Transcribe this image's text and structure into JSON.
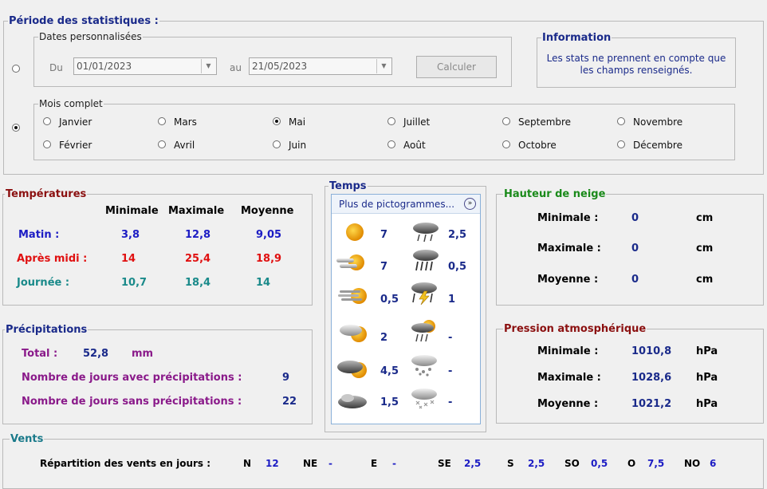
{
  "periode": {
    "title": "Période des statistiques :",
    "custom_dates": {
      "legend": "Dates personnalisées",
      "du_label": "Du",
      "du_value": "01/01/2023",
      "au_label": "au",
      "au_value": "21/05/2023",
      "calc_label": "Calculer"
    },
    "information": {
      "title": "Information",
      "text_line1": "Les stats ne prennent en compte que",
      "text_line2": "les champs renseignés."
    },
    "mois": {
      "legend": "Mois complet",
      "months": [
        "Janvier",
        "Février",
        "Mars",
        "Avril",
        "Mai",
        "Juin",
        "Juillet",
        "Août",
        "Septembre",
        "Octobre",
        "Novembre",
        "Décembre"
      ],
      "selected": "Mai"
    }
  },
  "temperatures": {
    "title": "Températures",
    "col_min": "Minimale",
    "col_max": "Maximale",
    "col_moy": "Moyenne",
    "rows": [
      {
        "label": "Matin :",
        "min": "3,8",
        "max": "12,8",
        "moy": "9,05"
      },
      {
        "label": "Après midi :",
        "min": "14",
        "max": "25,4",
        "moy": "18,9"
      },
      {
        "label": "Journée :",
        "min": "10,7",
        "max": "18,4",
        "moy": "14"
      }
    ],
    "colors": {
      "matin": "#1c1cc4",
      "apres_midi": "#e01010",
      "journee": "#1a8a8a"
    }
  },
  "temps": {
    "title": "Temps",
    "dropdown_label": "Plus de pictogrammes...",
    "items": [
      {
        "left_icon": "sun-icon",
        "left_value": "7",
        "right_icon": "cloud-light-rain-icon",
        "right_value": "2,5"
      },
      {
        "left_icon": "sun-mist-icon",
        "left_value": "7",
        "right_icon": "cloud-heavy-rain-icon",
        "right_value": "0,5"
      },
      {
        "left_icon": "sun-fog-icon",
        "left_value": "0,5",
        "right_icon": "thunderstorm-icon",
        "right_value": "1"
      },
      {
        "left_icon": "partly-cloudy-icon",
        "left_value": "2",
        "right_icon": "sun-rain-icon",
        "right_value": "-"
      },
      {
        "left_icon": "mostly-cloudy-icon",
        "left_value": "4,5",
        "right_icon": "cloud-snow-rain-icon",
        "right_value": "-"
      },
      {
        "left_icon": "overcast-icon",
        "left_value": "1,5",
        "right_icon": "snow-icon",
        "right_value": "-"
      }
    ]
  },
  "neige": {
    "title": "Hauteur de neige",
    "rows": [
      {
        "label": "Minimale :",
        "value": "0",
        "unit": "cm"
      },
      {
        "label": "Maximale :",
        "value": "0",
        "unit": "cm"
      },
      {
        "label": "Moyenne :",
        "value": "0",
        "unit": "cm"
      }
    ]
  },
  "precipitations": {
    "title": "Précipitations",
    "total_label": "Total :",
    "total_value": "52,8",
    "total_unit": "mm",
    "avec_label": "Nombre de jours avec précipitations :",
    "avec_value": "9",
    "sans_label": "Nombre de jours sans précipitations :",
    "sans_value": "22"
  },
  "pression": {
    "title": "Pression atmosphérique",
    "rows": [
      {
        "label": "Minimale :",
        "value": "1010,8",
        "unit": "hPa"
      },
      {
        "label": "Maximale :",
        "value": "1028,6",
        "unit": "hPa"
      },
      {
        "label": "Moyenne :",
        "value": "1021,2",
        "unit": "hPa"
      }
    ]
  },
  "vents": {
    "title": "Vents",
    "repartition_label": "Répartition des vents en jours :",
    "directions": [
      {
        "dir": "N",
        "value": "12"
      },
      {
        "dir": "NE",
        "value": "-"
      },
      {
        "dir": "E",
        "value": "-"
      },
      {
        "dir": "SE",
        "value": "2,5"
      },
      {
        "dir": "S",
        "value": "2,5"
      },
      {
        "dir": "SO",
        "value": "0,5"
      },
      {
        "dir": "O",
        "value": "7,5"
      },
      {
        "dir": "NO",
        "value": "6"
      }
    ]
  }
}
